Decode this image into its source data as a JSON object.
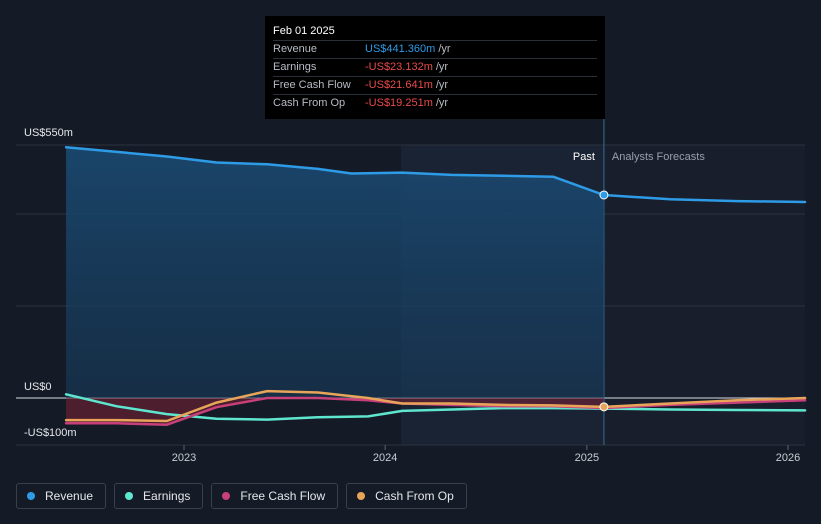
{
  "chart_data": {
    "type": "line",
    "y_axis": {
      "top_label": "US$550m",
      "zero_label": "US$0",
      "bottom_label": "-US$100m",
      "ylim": [
        -100,
        550
      ]
    },
    "x_axis": {
      "ticks": [
        "2023",
        "2024",
        "2025",
        "2026"
      ]
    },
    "past_label": "Past",
    "forecast_label": "Analysts Forecasts",
    "series": [
      {
        "name": "Revenue",
        "color": "#2e9be6",
        "points": [
          [
            "2022-06-01",
            545
          ],
          [
            "2022-09-01",
            535
          ],
          [
            "2022-12-01",
            525
          ],
          [
            "2023-03-01",
            512
          ],
          [
            "2023-06-01",
            508
          ],
          [
            "2023-09-01",
            498
          ],
          [
            "2023-11-01",
            488
          ],
          [
            "2024-02-01",
            490
          ],
          [
            "2024-05-01",
            485
          ],
          [
            "2024-08-01",
            483
          ],
          [
            "2024-11-01",
            481
          ],
          [
            "2025-02-01",
            441.36
          ],
          [
            "2025-06-01",
            432
          ],
          [
            "2025-10-01",
            428
          ],
          [
            "2026-02-01",
            426
          ]
        ]
      },
      {
        "name": "Earnings",
        "color": "#5ee6cf",
        "points": [
          [
            "2022-06-01",
            8
          ],
          [
            "2022-09-01",
            -18
          ],
          [
            "2022-12-01",
            -35
          ],
          [
            "2023-03-01",
            -45
          ],
          [
            "2023-06-01",
            -47
          ],
          [
            "2023-09-01",
            -42
          ],
          [
            "2023-12-01",
            -40
          ],
          [
            "2024-02-01",
            -28
          ],
          [
            "2024-05-01",
            -25
          ],
          [
            "2024-08-01",
            -22
          ],
          [
            "2024-11-01",
            -22
          ],
          [
            "2025-02-01",
            -23.132
          ],
          [
            "2025-06-01",
            -25
          ],
          [
            "2025-10-01",
            -26
          ],
          [
            "2026-02-01",
            -27
          ]
        ]
      },
      {
        "name": "Free Cash Flow",
        "color": "#c7407a",
        "points": [
          [
            "2022-06-01",
            -55
          ],
          [
            "2022-09-01",
            -55
          ],
          [
            "2022-12-01",
            -58
          ],
          [
            "2023-03-01",
            -20
          ],
          [
            "2023-06-01",
            0
          ],
          [
            "2023-09-01",
            0
          ],
          [
            "2023-12-01",
            -5
          ],
          [
            "2024-02-01",
            -12
          ],
          [
            "2024-05-01",
            -15
          ],
          [
            "2024-08-01",
            -18
          ],
          [
            "2024-11-01",
            -18
          ],
          [
            "2025-02-01",
            -21.641
          ],
          [
            "2025-06-01",
            -15
          ],
          [
            "2025-10-01",
            -10
          ],
          [
            "2026-02-01",
            -5
          ]
        ]
      },
      {
        "name": "Cash From Op",
        "color": "#e8a55a",
        "points": [
          [
            "2022-06-01",
            -48
          ],
          [
            "2022-09-01",
            -48
          ],
          [
            "2022-12-01",
            -50
          ],
          [
            "2023-03-01",
            -10
          ],
          [
            "2023-06-01",
            15
          ],
          [
            "2023-09-01",
            12
          ],
          [
            "2023-12-01",
            0
          ],
          [
            "2024-02-01",
            -12
          ],
          [
            "2024-05-01",
            -12
          ],
          [
            "2024-08-01",
            -15
          ],
          [
            "2024-11-01",
            -16
          ],
          [
            "2025-02-01",
            -19.251
          ],
          [
            "2025-06-01",
            -12
          ],
          [
            "2025-10-01",
            -5
          ],
          [
            "2026-02-01",
            0
          ]
        ]
      }
    ],
    "highlight_date": "2025-02-01",
    "grid": true
  },
  "tooltip": {
    "date": "Feb 01 2025",
    "rows": [
      {
        "label": "Revenue",
        "value": "US$441.360m",
        "unit": "/yr",
        "color": "#2e9be6"
      },
      {
        "label": "Earnings",
        "value": "-US$23.132m",
        "unit": "/yr",
        "color": "#e84b4b"
      },
      {
        "label": "Free Cash Flow",
        "value": "-US$21.641m",
        "unit": "/yr",
        "color": "#e84b4b"
      },
      {
        "label": "Cash From Op",
        "value": "-US$19.251m",
        "unit": "/yr",
        "color": "#e84b4b"
      }
    ]
  },
  "legend": [
    {
      "label": "Revenue",
      "color": "#2e9be6"
    },
    {
      "label": "Earnings",
      "color": "#5ee6cf"
    },
    {
      "label": "Free Cash Flow",
      "color": "#c7407a"
    },
    {
      "label": "Cash From Op",
      "color": "#e8a55a"
    }
  ]
}
